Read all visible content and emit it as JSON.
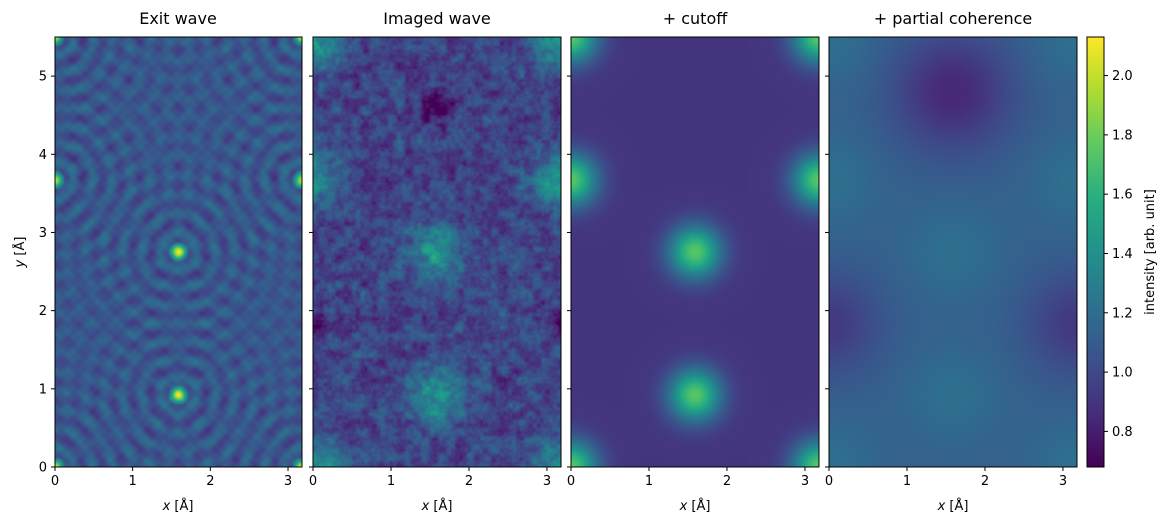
{
  "chart_data": [
    {
      "type": "heatmap",
      "title": "Exit wave",
      "xlabel": "x [Å]",
      "ylabel": "y [Å]",
      "xlim": [
        0,
        3.18
      ],
      "ylim": [
        0,
        5.5
      ],
      "xticks": [
        "0",
        "1",
        "2",
        "3"
      ],
      "yticks": [
        "0",
        "1",
        "2",
        "3",
        "4",
        "5"
      ],
      "features": "sharp atomic peaks at (1.59, 0.92), (1.59, 2.75), (0, 3.67), (3.18, 3.67), corners, surrounded by concentric interference rings"
    },
    {
      "type": "heatmap",
      "title": "Imaged wave",
      "xlabel": "x [Å]",
      "ylabel": "",
      "xlim": [
        0,
        3.18
      ],
      "ylim": [
        0,
        5.5
      ],
      "xticks": [
        "0",
        "1",
        "2",
        "3"
      ],
      "features": "speckled pattern with bright trefoil blobs around (1.59, 0.9) and (1.59, 2.75), dark spots at (1.59, 4.6) and (0, 1.85)"
    },
    {
      "type": "heatmap",
      "title": "+ cutoff",
      "xlabel": "x [Å]",
      "ylabel": "",
      "xlim": [
        0,
        3.18
      ],
      "ylim": [
        0,
        5.5
      ],
      "xticks": [
        "0",
        "1",
        "2",
        "3"
      ],
      "features": "smooth Gaussian peaks at (1.59, 0.9), (1.59, 2.75), (0, 3.67), (3.18, 3.67), corners"
    },
    {
      "type": "heatmap",
      "title": "+ partial coherence",
      "xlabel": "x [Å]",
      "ylabel": "",
      "xlim": [
        0,
        3.18
      ],
      "ylim": [
        0,
        5.5
      ],
      "xticks": [
        "0",
        "1",
        "2",
        "3"
      ],
      "features": "very smooth, low-contrast; minima at (1.59, 4.8), (0, 1.85), (3.18, 1.85); slightly higher around y≈1 and y≈3.5"
    }
  ],
  "colorbar": {
    "label": "intensity [arb. unit]",
    "colormap": "viridis",
    "vmin": 0.68,
    "vmax": 2.13,
    "ticks": [
      "0.8",
      "1.0",
      "1.2",
      "1.4",
      "1.6",
      "1.8",
      "2.0"
    ],
    "tick_values": [
      0.8,
      1.0,
      1.2,
      1.4,
      1.6,
      1.8,
      2.0
    ]
  }
}
